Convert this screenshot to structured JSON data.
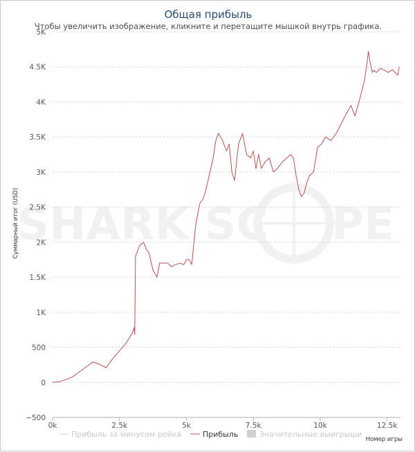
{
  "chart_data": {
    "type": "line",
    "title": "Общая прибыль",
    "subtitle": "Чтобы увеличить изображение, кликните и перетащите мышкой внутрь графика.",
    "xlabel": "Номер игры",
    "ylabel": "Суммарный итог (USD)",
    "xlim": [
      0,
      13000
    ],
    "ylim": [
      -500,
      5000
    ],
    "x_ticks": [
      0,
      2500,
      5000,
      7500,
      10000,
      12500
    ],
    "x_tick_labels": [
      "0k",
      "2.5k",
      "5k",
      "7.5k",
      "10k",
      "12.5k"
    ],
    "y_ticks": [
      -500,
      0,
      500,
      1000,
      1500,
      2000,
      2500,
      3000,
      3500,
      4000,
      4500,
      5000
    ],
    "y_tick_labels": [
      "−500",
      "0",
      "500",
      "1K",
      "1.5K",
      "2K",
      "2.5K",
      "3K",
      "3.5K",
      "4K",
      "4.5K",
      "5K"
    ],
    "grid": true,
    "legend_position": "bottom",
    "watermark": "SHARK SCOPE",
    "colors": {
      "profit_line": "#b5524f",
      "rake_line": "#d9d9d9",
      "big_wins": "#d0d0d0",
      "title": "#274b6d"
    },
    "series": [
      {
        "name": "Прибыль",
        "visible": true,
        "x": [
          0,
          250,
          500,
          750,
          1000,
          1250,
          1500,
          1750,
          2000,
          2250,
          2500,
          2750,
          3000,
          3050,
          3070,
          3100,
          3250,
          3400,
          3500,
          3600,
          3750,
          3900,
          4000,
          4150,
          4300,
          4450,
          4600,
          4750,
          4900,
          5000,
          5100,
          5200,
          5350,
          5500,
          5600,
          5700,
          5850,
          6000,
          6100,
          6200,
          6350,
          6500,
          6600,
          6700,
          6800,
          6950,
          7100,
          7250,
          7400,
          7500,
          7600,
          7700,
          7800,
          7950,
          8100,
          8250,
          8400,
          8600,
          8750,
          8900,
          9000,
          9100,
          9200,
          9300,
          9400,
          9500,
          9600,
          9750,
          9900,
          10050,
          10200,
          10400,
          10600,
          10800,
          11000,
          11150,
          11300,
          11450,
          11550,
          11650,
          11750,
          11800,
          11850,
          11900,
          11950,
          12000,
          12100,
          12250,
          12400,
          12550,
          12700,
          12800,
          12900,
          12950
        ],
        "values": [
          0,
          10,
          40,
          80,
          150,
          220,
          290,
          260,
          210,
          340,
          450,
          560,
          720,
          780,
          680,
          1800,
          1950,
          2000,
          1900,
          1850,
          1600,
          1500,
          1700,
          1700,
          1700,
          1650,
          1680,
          1700,
          1680,
          1750,
          1750,
          1680,
          2250,
          2550,
          2600,
          2700,
          2950,
          3200,
          3450,
          3550,
          3450,
          3300,
          3400,
          3000,
          2880,
          3400,
          3550,
          3250,
          3200,
          3300,
          3050,
          3250,
          3050,
          3150,
          3200,
          3000,
          3050,
          3150,
          3200,
          3250,
          3200,
          2950,
          2750,
          2650,
          2700,
          2850,
          2950,
          3000,
          3350,
          3400,
          3500,
          3450,
          3550,
          3700,
          3850,
          3950,
          3800,
          4000,
          4150,
          4300,
          4550,
          4720,
          4600,
          4500,
          4420,
          4450,
          4420,
          4480,
          4450,
          4420,
          4460,
          4420,
          4380,
          4500
        ]
      },
      {
        "name": "Прибыль за минусом рейка",
        "visible": false
      },
      {
        "name": "Значительные выигрыши",
        "visible": false
      }
    ]
  }
}
